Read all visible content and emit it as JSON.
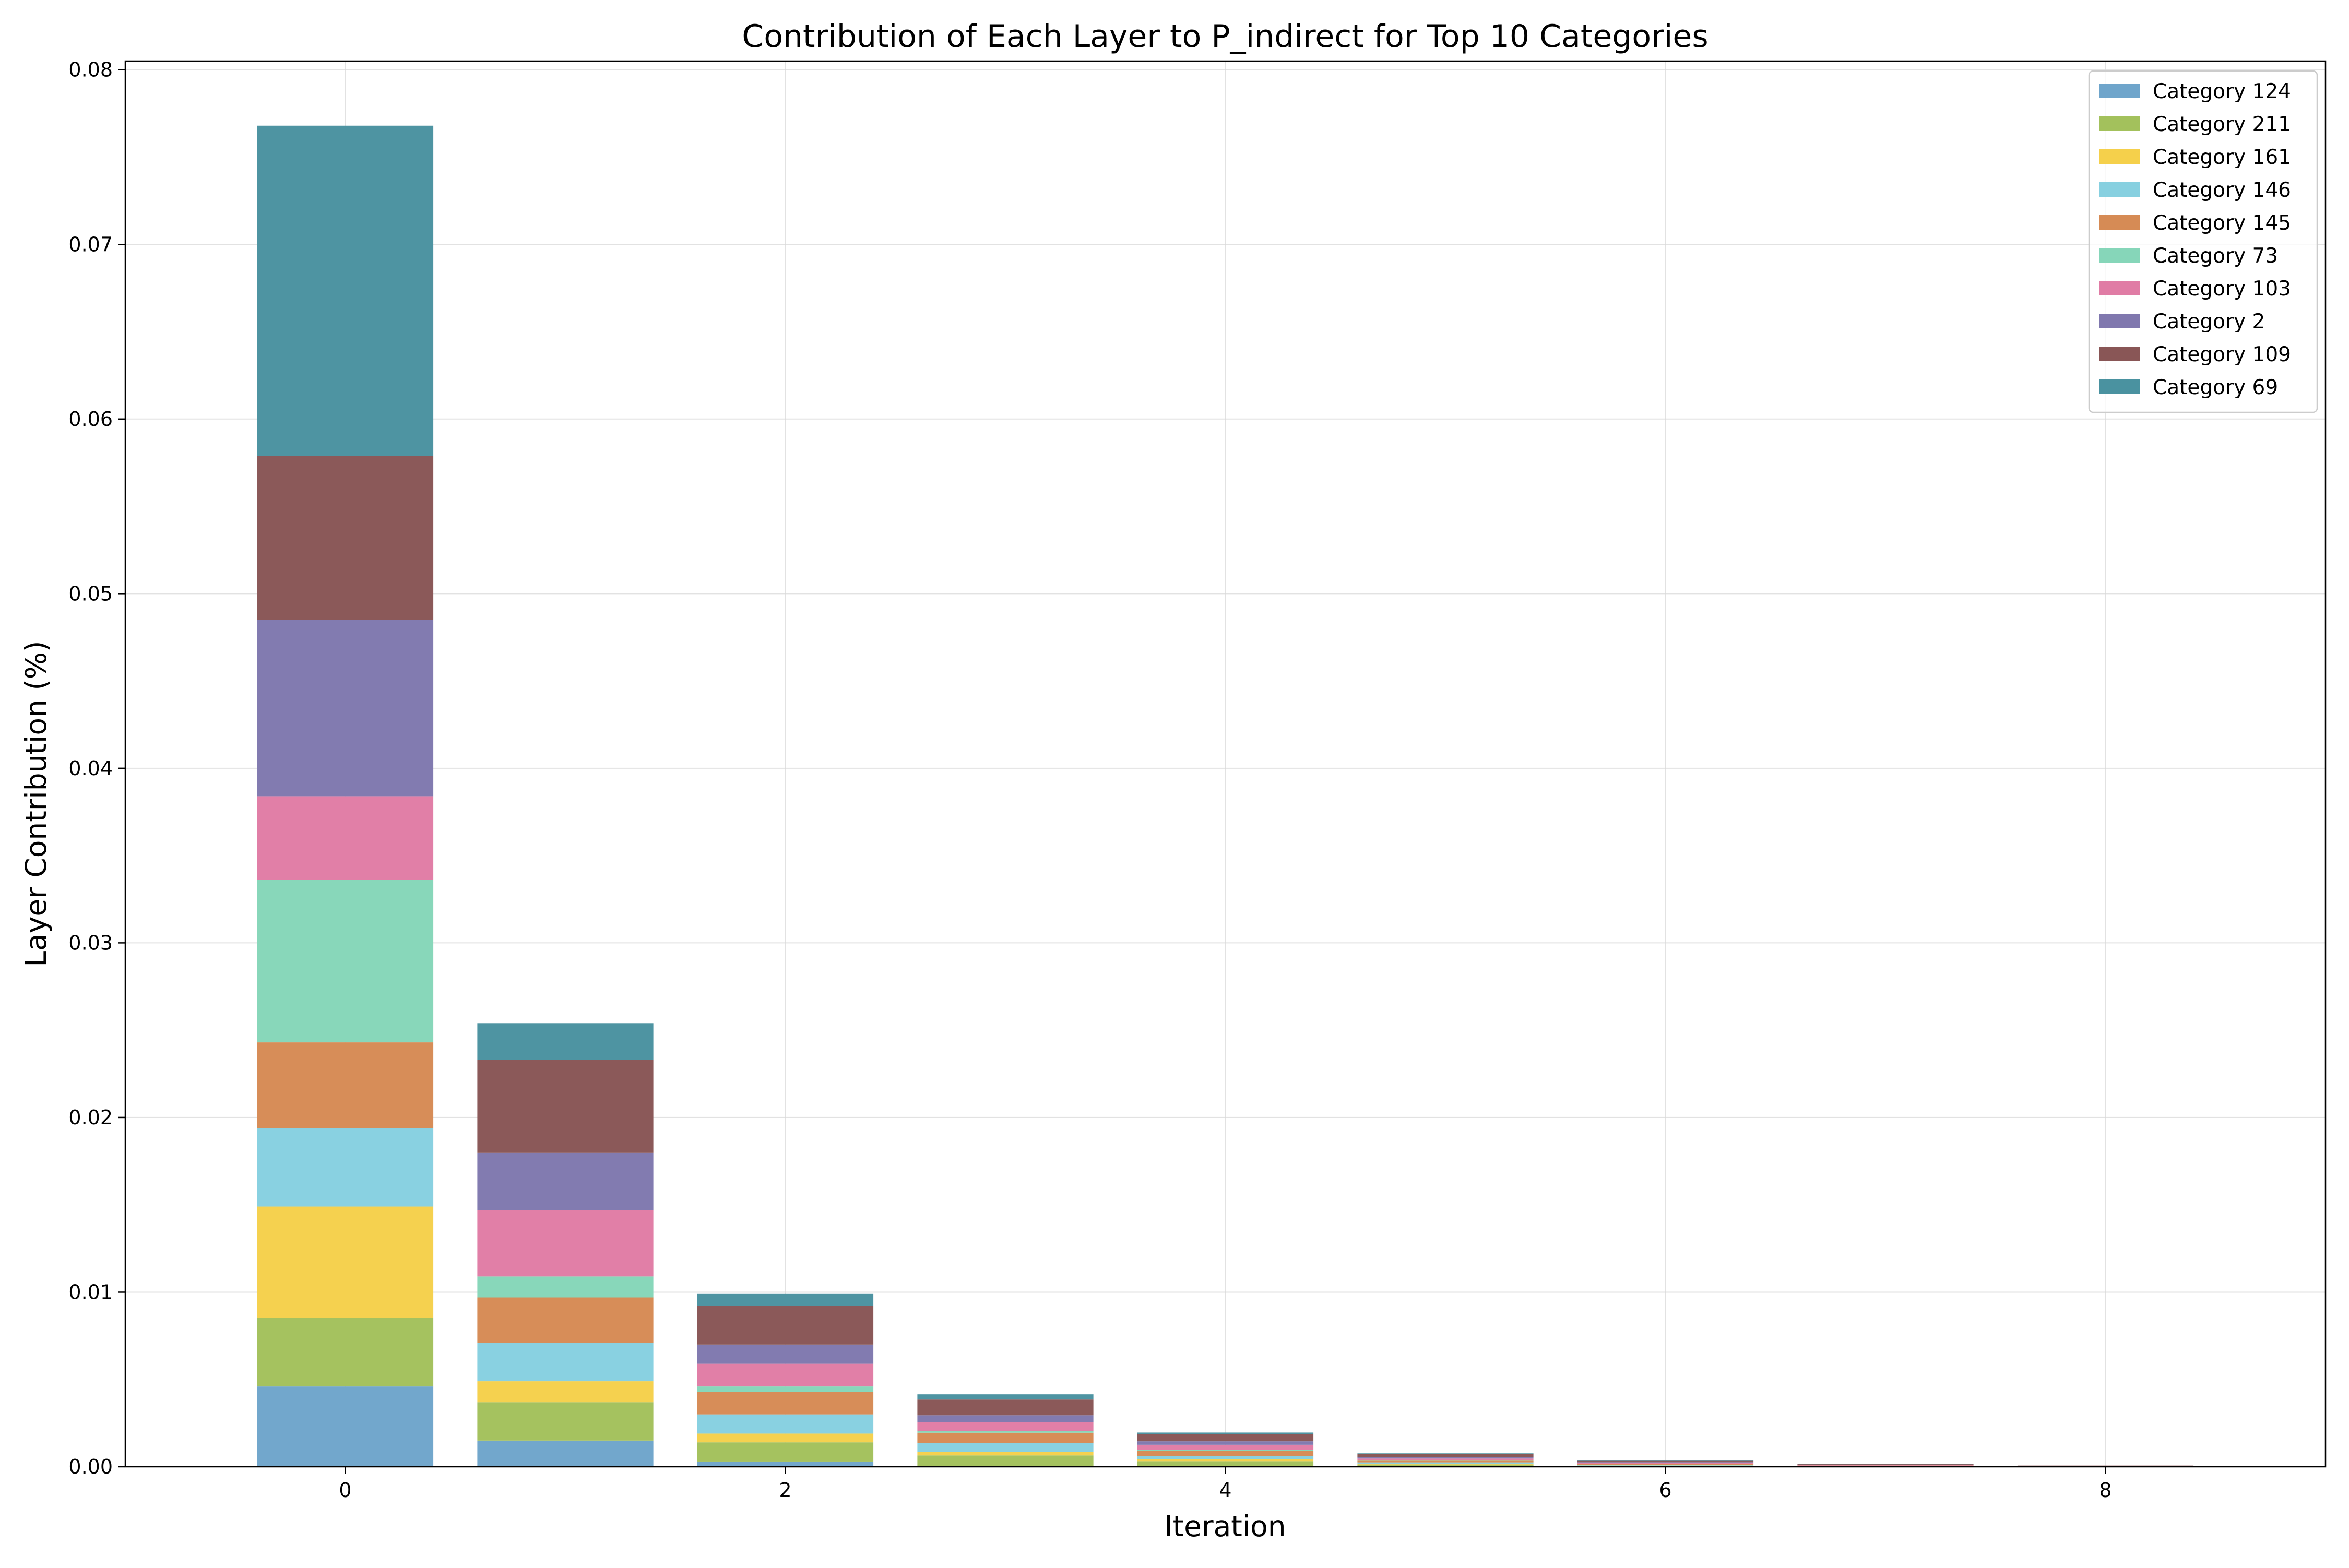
{
  "chart_data": {
    "type": "bar",
    "stacked": true,
    "title": "Contribution of Each Layer to P_indirect for Top 10 Categories",
    "xlabel": "Iteration",
    "ylabel": "Layer Contribution (%)",
    "x": [
      0,
      1,
      2,
      3,
      4,
      5,
      6,
      7,
      8
    ],
    "xticks": [
      "0",
      "2",
      "4",
      "6",
      "8"
    ],
    "yticks": [
      "0.00",
      "0.01",
      "0.02",
      "0.03",
      "0.04",
      "0.05",
      "0.06",
      "0.07",
      "0.08"
    ],
    "xlim": [
      -1,
      9
    ],
    "ylim": [
      0,
      0.0805
    ],
    "grid": true,
    "legend_position": "top-right",
    "series": [
      {
        "name": "Category 124",
        "color": "#6fa5cb",
        "values": [
          0.0046,
          0.0015,
          0.0003,
          5e-05,
          2e-05,
          1e-05,
          0,
          0,
          0
        ]
      },
      {
        "name": "Category 211",
        "color": "#a3c15c",
        "values": [
          0.0039,
          0.0022,
          0.0011,
          0.0006,
          0.0003,
          0.00012,
          5e-05,
          2e-05,
          1e-05
        ]
      },
      {
        "name": "Category 161",
        "color": "#f5d04b",
        "values": [
          0.0064,
          0.0012,
          0.0005,
          0.0002,
          0.0001,
          4e-05,
          2e-05,
          1e-05,
          0
        ]
      },
      {
        "name": "Category 146",
        "color": "#87d0e0",
        "values": [
          0.0045,
          0.0022,
          0.0011,
          0.0005,
          0.0002,
          8e-05,
          4e-05,
          2e-05,
          1e-05
        ]
      },
      {
        "name": "Category 145",
        "color": "#d68b55",
        "values": [
          0.0049,
          0.0026,
          0.0013,
          0.0006,
          0.0003,
          0.0001,
          5e-05,
          2e-05,
          1e-05
        ]
      },
      {
        "name": "Category 73",
        "color": "#86d6b9",
        "values": [
          0.0093,
          0.0012,
          0.0003,
          0.0001,
          4e-05,
          2e-05,
          1e-05,
          0,
          0
        ]
      },
      {
        "name": "Category 103",
        "color": "#e07ca5",
        "values": [
          0.0048,
          0.0038,
          0.0013,
          0.0005,
          0.0003,
          0.0001,
          5e-05,
          2e-05,
          1e-05
        ]
      },
      {
        "name": "Category 2",
        "color": "#8078ae",
        "values": [
          0.0101,
          0.0033,
          0.0011,
          0.0004,
          0.0002,
          8e-05,
          4e-05,
          2e-05,
          1e-05
        ]
      },
      {
        "name": "Category 109",
        "color": "#895656",
        "values": [
          0.0094,
          0.0053,
          0.0022,
          0.0009,
          0.0004,
          0.00018,
          8e-05,
          4e-05,
          2e-05
        ]
      },
      {
        "name": "Category 69",
        "color": "#4a92a0",
        "values": [
          0.0189,
          0.0021,
          0.0007,
          0.0003,
          0.0001,
          4e-05,
          2e-05,
          1e-05,
          0
        ]
      }
    ]
  }
}
